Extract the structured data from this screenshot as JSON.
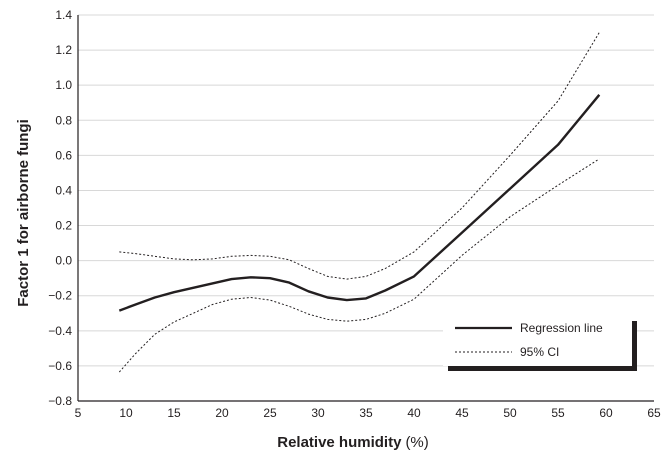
{
  "chart_data": {
    "type": "line",
    "title": "",
    "xlabel": "Relative humidity",
    "xlabel_unit": "(%)",
    "ylabel": "Factor 1 for airborne fungi",
    "xlim": [
      5,
      65
    ],
    "ylim": [
      -0.8,
      1.4
    ],
    "x_ticks": [
      5,
      10,
      15,
      20,
      25,
      30,
      35,
      40,
      45,
      50,
      55,
      60,
      65
    ],
    "x_tick_labels": [
      "5",
      "10",
      "15",
      "20",
      "25",
      "30",
      "35",
      "40",
      "45",
      "50",
      "55",
      "60",
      "65"
    ],
    "y_ticks": [
      -0.8,
      -0.6,
      -0.4,
      -0.2,
      0.0,
      0.2,
      0.4,
      0.6,
      0.8,
      1.0,
      1.2,
      1.4
    ],
    "y_tick_labels": [
      "−0.8",
      "−0.6",
      "−0.4",
      "−0.2",
      "0.0",
      "0.2",
      "0.4",
      "0.6",
      "0.8",
      "1.0",
      "1.2",
      "1.4"
    ],
    "grid": "horizontal",
    "legend_position": "bottom-right",
    "series": [
      {
        "name": "Regression line",
        "style": "solid",
        "color": "#231f20",
        "x": [
          9.3,
          11,
          13,
          15,
          17,
          19,
          21,
          23,
          25,
          27,
          29,
          31,
          33,
          35,
          37,
          40,
          45,
          50,
          55,
          59.3
        ],
        "y": [
          -0.285,
          -0.25,
          -0.21,
          -0.18,
          -0.155,
          -0.13,
          -0.105,
          -0.095,
          -0.1,
          -0.125,
          -0.175,
          -0.21,
          -0.225,
          -0.215,
          -0.17,
          -0.09,
          0.16,
          0.41,
          0.66,
          0.945
        ]
      },
      {
        "name": "95% CI",
        "style": "dotted",
        "color": "#231f20",
        "x": [
          9.3,
          11,
          13,
          15,
          17,
          19,
          21,
          23,
          25,
          27,
          29,
          31,
          33,
          35,
          37,
          40,
          45,
          50,
          55,
          59.3
        ],
        "y": [
          0.05,
          0.04,
          0.025,
          0.01,
          0.005,
          0.01,
          0.025,
          0.03,
          0.025,
          0.005,
          -0.045,
          -0.09,
          -0.105,
          -0.09,
          -0.045,
          0.05,
          0.3,
          0.6,
          0.91,
          1.3
        ]
      },
      {
        "name": "95% CI",
        "style": "dotted",
        "color": "#231f20",
        "x": [
          9.3,
          11,
          13,
          15,
          17,
          19,
          21,
          23,
          25,
          27,
          29,
          31,
          33,
          35,
          37,
          40,
          45,
          50,
          55,
          59.3
        ],
        "y": [
          -0.635,
          -0.53,
          -0.42,
          -0.35,
          -0.3,
          -0.25,
          -0.22,
          -0.21,
          -0.225,
          -0.26,
          -0.305,
          -0.335,
          -0.345,
          -0.335,
          -0.3,
          -0.22,
          0.03,
          0.25,
          0.43,
          0.58
        ]
      }
    ]
  }
}
